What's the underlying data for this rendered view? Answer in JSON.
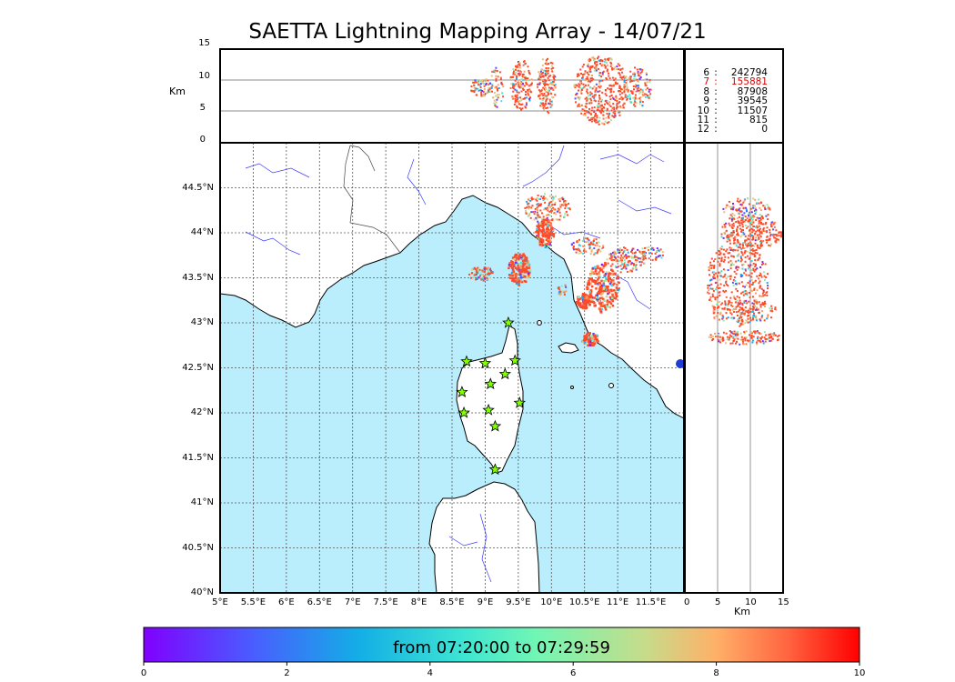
{
  "title": "SAETTA Lightning Mapping Array - 14/07/21",
  "altitude_panel": {
    "unit_label": "Km",
    "ticks": [
      "15",
      "10",
      "5",
      "0"
    ]
  },
  "side_panel": {
    "unit_label": "Km",
    "ticks": [
      "0",
      "5",
      "10",
      "15"
    ]
  },
  "latitude_ticks": [
    "44.5°N",
    "44°N",
    "43.5°N",
    "43°N",
    "42.5°N",
    "42°N",
    "41.5°N",
    "41°N",
    "40.5°N",
    "40°N"
  ],
  "longitude_ticks": [
    "5°E",
    "5.5°E",
    "6°E",
    "6.5°E",
    "7°E",
    "7.5°E",
    "8°E",
    "8.5°E",
    "9°E",
    "9.5°E",
    "10°E",
    "10.5°E",
    "11°E",
    "11.5°E"
  ],
  "station_counts": [
    {
      "stations": "6",
      "count": "242794",
      "highlight": false
    },
    {
      "stations": "7",
      "count": "155881",
      "highlight": true
    },
    {
      "stations": "8",
      "count": "87908",
      "highlight": false
    },
    {
      "stations": "9",
      "count": "39545",
      "highlight": false
    },
    {
      "stations": "10",
      "count": "11507",
      "highlight": false
    },
    {
      "stations": "11",
      "count": "815",
      "highlight": false
    },
    {
      "stations": "12",
      "count": "0",
      "highlight": false
    }
  ],
  "colorbar": {
    "label": "from 07:20:00 to 07:29:59",
    "ticks": [
      "0",
      "2",
      "4",
      "6",
      "8",
      "10"
    ]
  },
  "colors": {
    "sea": "#bbeefc",
    "land": "#ffffff",
    "rivers": "#3c3cff",
    "stations": "#7fff00",
    "highlight": "#e00000"
  },
  "station_markers": [
    {
      "lon": 9.35,
      "lat": 43.0
    },
    {
      "lon": 8.72,
      "lat": 42.57
    },
    {
      "lon": 9.0,
      "lat": 42.55
    },
    {
      "lon": 9.45,
      "lat": 42.58
    },
    {
      "lon": 9.3,
      "lat": 42.43
    },
    {
      "lon": 9.08,
      "lat": 42.32
    },
    {
      "lon": 8.65,
      "lat": 42.23
    },
    {
      "lon": 9.52,
      "lat": 42.11
    },
    {
      "lon": 8.68,
      "lat": 42.0
    },
    {
      "lon": 9.05,
      "lat": 42.03
    },
    {
      "lon": 9.15,
      "lat": 41.85
    },
    {
      "lon": 9.15,
      "lat": 41.37
    }
  ]
}
